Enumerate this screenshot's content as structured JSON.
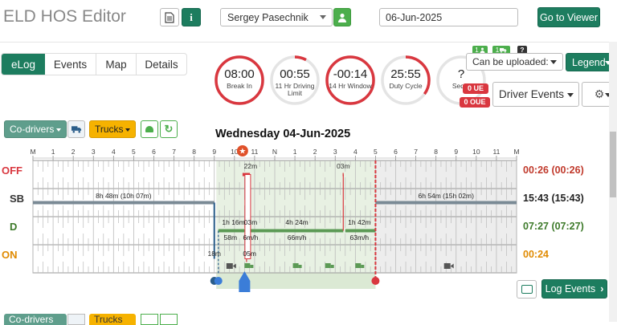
{
  "app": {
    "title": "ELD HOS Editor"
  },
  "header": {
    "driver_name": "Sergey Pasechnik",
    "date": "06-Jun-2025",
    "go_to_viewer": "Go to Viewer"
  },
  "tabs": [
    {
      "label": "eLog"
    },
    {
      "label": "Events"
    },
    {
      "label": "Map"
    },
    {
      "label": "Details"
    }
  ],
  "dials": [
    {
      "value": "08:00",
      "label": "Break In",
      "fraction": 1.0,
      "color": "#d9373f"
    },
    {
      "value": "00:55",
      "label": "11 Hr Driving Limit",
      "fraction": 0.08,
      "color": "#d9373f"
    },
    {
      "value": "-00:14",
      "label": "14 Hr Window",
      "fraction": 1.0,
      "color": "#d9373f"
    },
    {
      "value": "25:55",
      "label": "Duty Cycle",
      "fraction": 0.35,
      "color": "#d9373f"
    },
    {
      "value": "?",
      "label": "Seq...",
      "fraction": 0,
      "color": "#d9373f"
    }
  ],
  "upload": {
    "badge_user_count": "1",
    "badge_truck_count": "1",
    "badge_question": "?",
    "can_be_uploaded": "Can be uploaded:",
    "legend": "Legend",
    "ue_badge_1": "0 UE",
    "ue_badge_2": "0 OUE",
    "driver_events": "Driver Events"
  },
  "toolbar": {
    "codrivers": "Co-drivers",
    "trucks": "Trucks"
  },
  "chart": {
    "date_title": "Wednesday 04-Jun-2025",
    "hour_labels": [
      "M",
      "1",
      "2",
      "3",
      "4",
      "5",
      "6",
      "7",
      "8",
      "9",
      "10",
      "11",
      "N",
      "1",
      "2",
      "3",
      "4",
      "5",
      "6",
      "7",
      "8",
      "9",
      "10",
      "11",
      "M"
    ],
    "rows": [
      {
        "label": "OFF",
        "color": "#d9373f",
        "total": "00:26 (00:26)",
        "total_color": "#c0392b"
      },
      {
        "label": "SB",
        "color": "#333333",
        "total": "15:43 (15:43)",
        "total_color": "#222222"
      },
      {
        "label": "D",
        "color": "#3d7a2a",
        "total": "07:27 (07:27)",
        "total_color": "#3d7a2a"
      },
      {
        "label": "ON",
        "color": "#e08a00",
        "total": "00:24",
        "total_color": "#e08a00"
      }
    ],
    "annotations": {
      "off_a": "22m",
      "off_b": "03m",
      "sb_a": "8h 48m (10h 07m)",
      "sb_b": "6h 54m (15h 02m)",
      "d_a": "1h 16m",
      "d_b": "03m",
      "d_c": "4h 24m",
      "d_d": "1h 42m",
      "d_speed_a": "58m",
      "d_speed_b": "6m/h",
      "d_speed_c": "66m/h",
      "d_speed_d": "63m/h",
      "on_a": "18m",
      "on_b": "05m"
    }
  },
  "bottom": {
    "log_events": "Log Events"
  }
}
